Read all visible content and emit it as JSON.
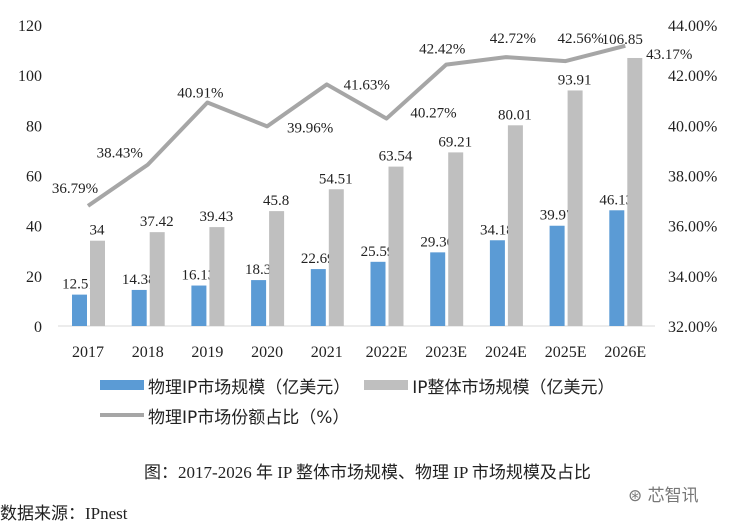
{
  "chart_data": {
    "type": "bar",
    "categories": [
      "2017",
      "2018",
      "2019",
      "2020",
      "2021",
      "2022E",
      "2023E",
      "2024E",
      "2025E",
      "2026E"
    ],
    "series": [
      {
        "name": "物理IP市场规模（亿美元）",
        "type": "bar",
        "axis": "left",
        "color": "#5b9bd5",
        "values": [
          12.51,
          14.38,
          16.13,
          18.3,
          22.69,
          25.59,
          29.36,
          34.18,
          39.97,
          46.13
        ]
      },
      {
        "name": "IP整体市场规模（亿美元）",
        "type": "bar",
        "axis": "left",
        "color": "#bfbfbf",
        "values": [
          34,
          37.42,
          39.43,
          45.8,
          54.51,
          63.54,
          69.21,
          80.01,
          93.91,
          106.85
        ]
      },
      {
        "name": "物理IP市场份额占比（%）",
        "type": "line",
        "axis": "right",
        "color": "#a6a6a6",
        "values": [
          36.79,
          38.43,
          40.91,
          39.96,
          41.63,
          40.27,
          42.42,
          42.72,
          42.56,
          43.17
        ]
      }
    ],
    "left_axis": {
      "range": [
        0,
        120
      ],
      "ticks": [
        "0",
        "20",
        "40",
        "60",
        "80",
        "100",
        "120"
      ]
    },
    "right_axis": {
      "range": [
        32,
        44
      ],
      "ticks": [
        "32.00%",
        "34.00%",
        "36.00%",
        "38.00%",
        "40.00%",
        "42.00%",
        "44.00%"
      ]
    },
    "grid": false,
    "legend_placement": "bottom"
  },
  "caption": "图：2017-2026 年 IP 整体市场规模、物理 IP 市场规模及占比",
  "source": "数据来源：IPnest",
  "watermark": "芯智讯"
}
